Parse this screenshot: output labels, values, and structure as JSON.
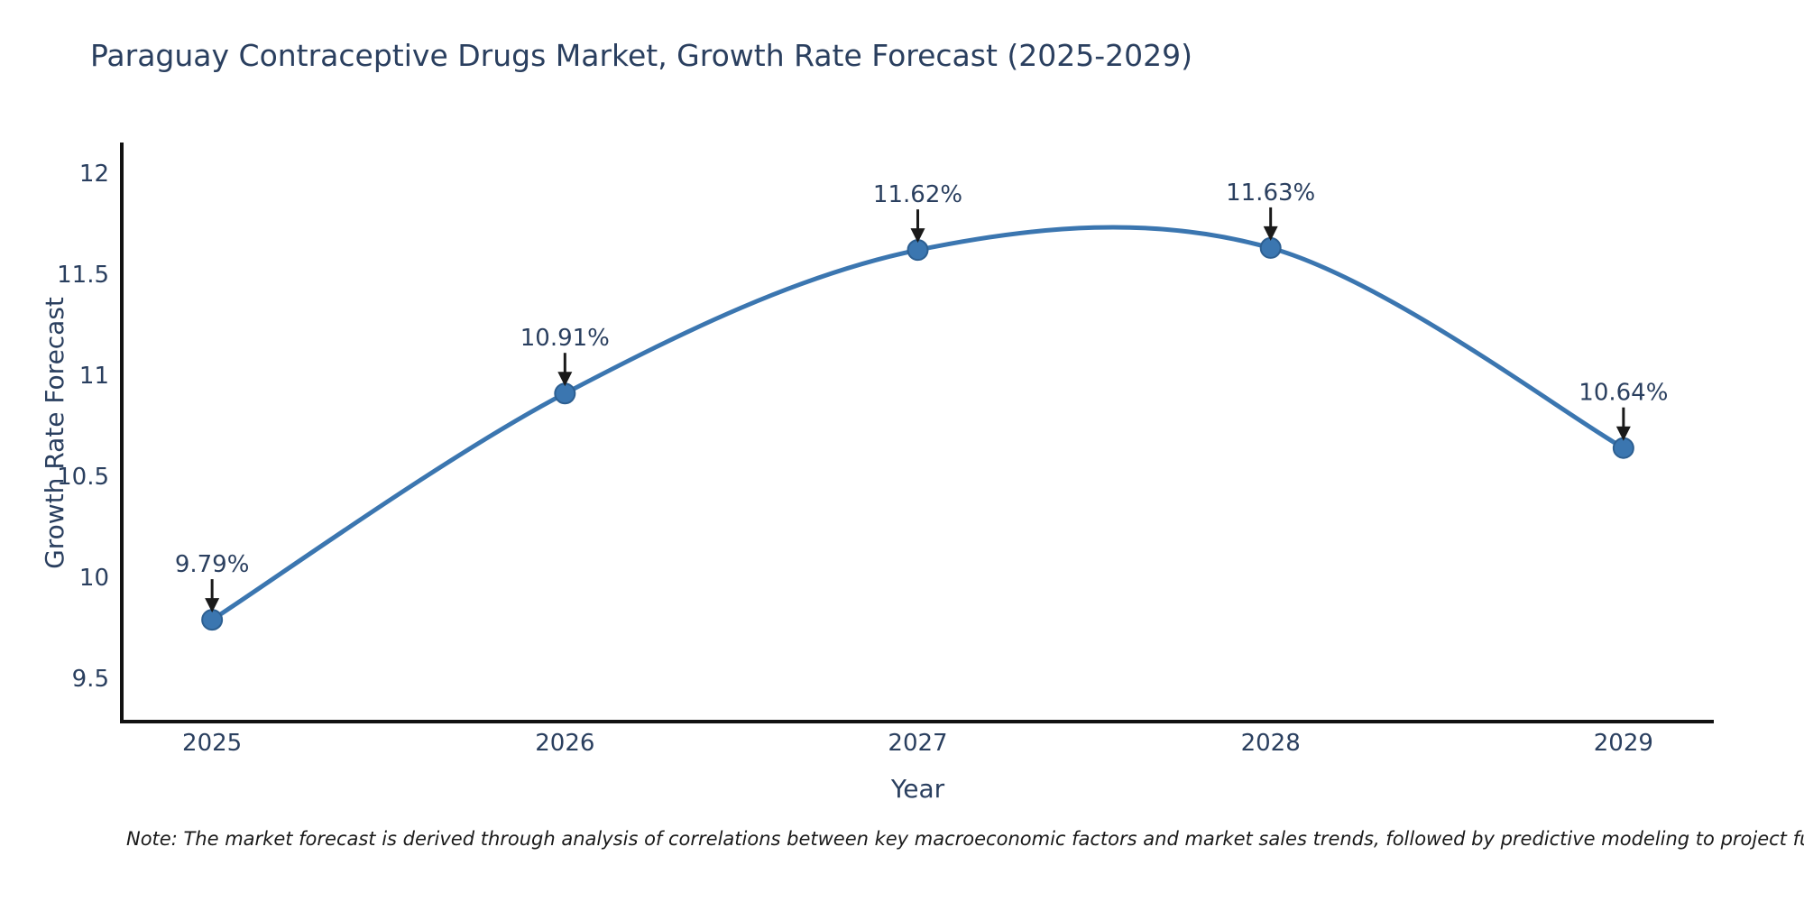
{
  "title": "Paraguay Contraceptive Drugs Market, Growth Rate Forecast (2025-2029)",
  "note": "Note: The market forecast is derived through analysis of correlations between key macroeconomic factors and market sales trends, followed by predictive modeling to project future sales.",
  "chart_data": {
    "type": "line",
    "title": "Paraguay Contraceptive Drugs Market, Growth Rate Forecast (2025-2029)",
    "xlabel": "Year",
    "ylabel": "Growth Rate Forecast",
    "x": [
      2025,
      2026,
      2027,
      2028,
      2029
    ],
    "series": [
      {
        "name": "Growth Rate Forecast",
        "values": [
          9.79,
          10.91,
          11.62,
          11.63,
          10.64
        ]
      }
    ],
    "point_labels": [
      "9.79%",
      "10.91%",
      "11.62%",
      "11.63%",
      "10.64%"
    ],
    "x_ticks": [
      2025,
      2026,
      2027,
      2028,
      2029
    ],
    "x_tick_labels": [
      "2025",
      "2026",
      "2027",
      "2028",
      "2029"
    ],
    "y_ticks": [
      9.5,
      10,
      10.5,
      11,
      11.5,
      12
    ],
    "y_tick_labels": [
      "9.5",
      "10",
      "10.5",
      "11",
      "11.5",
      "12"
    ],
    "xlim": [
      2024.744,
      2029.256
    ],
    "ylim": [
      9.286,
      12.143
    ],
    "line_shape": "spline",
    "grid": false,
    "legend_position": "none",
    "colors": {
      "line": "#3b76b0",
      "marker_fill": "#3b76b0",
      "marker_edge": "#2d5f91",
      "axis": "#111111",
      "text": "#2a3f5f",
      "annotation_text": "#2a3f5f",
      "arrow": "#1a1a1a",
      "background": "#ffffff"
    }
  }
}
